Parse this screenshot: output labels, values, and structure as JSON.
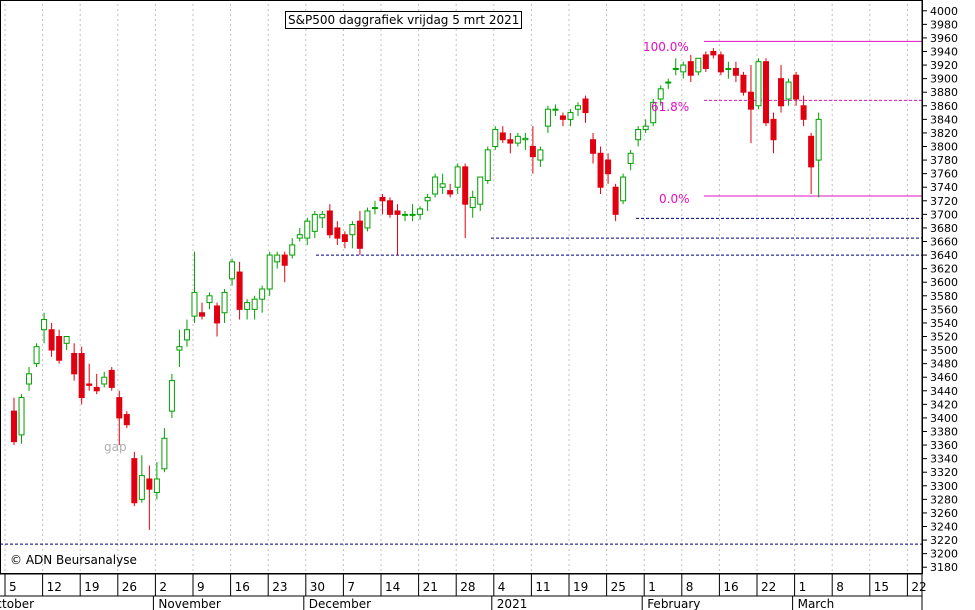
{
  "title": "S&P500 daggrafiek vrijdag 5 mrt 2021",
  "copyright": "© ADN Beursanalyse",
  "colors": {
    "up": "#00a000",
    "down": "#e00010",
    "fib": "#e010c0",
    "support": "#000080",
    "grid": "#c0c0c0",
    "gap": "#b0b0b0"
  },
  "chart_data": {
    "type": "candlestick",
    "title": "S&P500 daggrafiek vrijdag 5 mrt 2021",
    "ylim": [
      3170,
      4010
    ],
    "y_ticks": [
      3180,
      3200,
      3220,
      3240,
      3260,
      3280,
      3300,
      3320,
      3340,
      3360,
      3380,
      3400,
      3420,
      3440,
      3460,
      3480,
      3500,
      3520,
      3540,
      3560,
      3580,
      3600,
      3620,
      3640,
      3660,
      3680,
      3700,
      3720,
      3740,
      3760,
      3780,
      3800,
      3820,
      3840,
      3860,
      3880,
      3900,
      3920,
      3940,
      3960,
      3980,
      4000
    ],
    "x_tick_labels": [
      "5",
      "12",
      "19",
      "26",
      "2",
      "9",
      "16",
      "23",
      "30",
      "7",
      "14",
      "21",
      "28",
      "4",
      "11",
      "19",
      "25",
      "1",
      "8",
      "16",
      "22",
      "1",
      "8",
      "15",
      "22"
    ],
    "month_labels": [
      {
        "label": "October",
        "tick": 0
      },
      {
        "label": "November",
        "tick": 4
      },
      {
        "label": "December",
        "tick": 8
      },
      {
        "label": "2021",
        "tick": 13
      },
      {
        "label": "February",
        "tick": 17
      },
      {
        "label": "March",
        "tick": 21
      }
    ],
    "grid": true,
    "candles": [
      {
        "o": 3410,
        "h": 3430,
        "l": 3360,
        "c": 3365
      },
      {
        "o": 3375,
        "h": 3435,
        "l": 3362,
        "c": 3430
      },
      {
        "o": 3450,
        "h": 3475,
        "l": 3440,
        "c": 3465
      },
      {
        "o": 3480,
        "h": 3510,
        "l": 3475,
        "c": 3505
      },
      {
        "o": 3530,
        "h": 3555,
        "l": 3510,
        "c": 3545
      },
      {
        "o": 3530,
        "h": 3540,
        "l": 3490,
        "c": 3500
      },
      {
        "o": 3520,
        "h": 3530,
        "l": 3480,
        "c": 3485
      },
      {
        "o": 3510,
        "h": 3520,
        "l": 3500,
        "c": 3520
      },
      {
        "o": 3495,
        "h": 3510,
        "l": 3455,
        "c": 3465
      },
      {
        "o": 3495,
        "h": 3505,
        "l": 3420,
        "c": 3430
      },
      {
        "o": 3450,
        "h": 3480,
        "l": 3440,
        "c": 3448
      },
      {
        "o": 3445,
        "h": 3465,
        "l": 3435,
        "c": 3440
      },
      {
        "o": 3450,
        "h": 3468,
        "l": 3445,
        "c": 3460
      },
      {
        "o": 3470,
        "h": 3475,
        "l": 3440,
        "c": 3445
      },
      {
        "o": 3430,
        "h": 3440,
        "l": 3360,
        "c": 3400
      },
      {
        "o": 3405,
        "h": 3410,
        "l": 3385,
        "c": 3390
      },
      {
        "o": 3340,
        "h": 3350,
        "l": 3270,
        "c": 3275
      },
      {
        "o": 3280,
        "h": 3345,
        "l": 3275,
        "c": 3315
      },
      {
        "o": 3310,
        "h": 3330,
        "l": 3235,
        "c": 3295
      },
      {
        "o": 3290,
        "h": 3335,
        "l": 3280,
        "c": 3310
      },
      {
        "o": 3325,
        "h": 3385,
        "l": 3320,
        "c": 3370
      },
      {
        "o": 3410,
        "h": 3465,
        "l": 3400,
        "c": 3455
      },
      {
        "o": 3500,
        "h": 3530,
        "l": 3475,
        "c": 3505
      },
      {
        "o": 3515,
        "h": 3545,
        "l": 3505,
        "c": 3530
      },
      {
        "o": 3550,
        "h": 3645,
        "l": 3540,
        "c": 3585
      },
      {
        "o": 3555,
        "h": 3570,
        "l": 3545,
        "c": 3550
      },
      {
        "o": 3570,
        "h": 3585,
        "l": 3560,
        "c": 3580
      },
      {
        "o": 3565,
        "h": 3570,
        "l": 3520,
        "c": 3540
      },
      {
        "o": 3555,
        "h": 3590,
        "l": 3540,
        "c": 3585
      },
      {
        "o": 3605,
        "h": 3635,
        "l": 3595,
        "c": 3630
      },
      {
        "o": 3615,
        "h": 3630,
        "l": 3545,
        "c": 3560
      },
      {
        "o": 3560,
        "h": 3575,
        "l": 3545,
        "c": 3570
      },
      {
        "o": 3560,
        "h": 3580,
        "l": 3545,
        "c": 3575
      },
      {
        "o": 3575,
        "h": 3595,
        "l": 3555,
        "c": 3590
      },
      {
        "o": 3590,
        "h": 3645,
        "l": 3580,
        "c": 3640
      },
      {
        "o": 3630,
        "h": 3645,
        "l": 3620,
        "c": 3640
      },
      {
        "o": 3640,
        "h": 3645,
        "l": 3600,
        "c": 3625
      },
      {
        "o": 3640,
        "h": 3665,
        "l": 3635,
        "c": 3655
      },
      {
        "o": 3665,
        "h": 3680,
        "l": 3660,
        "c": 3670
      },
      {
        "o": 3665,
        "h": 3695,
        "l": 3655,
        "c": 3690
      },
      {
        "o": 3675,
        "h": 3705,
        "l": 3665,
        "c": 3700
      },
      {
        "o": 3695,
        "h": 3705,
        "l": 3680,
        "c": 3700
      },
      {
        "o": 3705,
        "h": 3715,
        "l": 3665,
        "c": 3670
      },
      {
        "o": 3680,
        "h": 3690,
        "l": 3655,
        "c": 3665
      },
      {
        "o": 3670,
        "h": 3675,
        "l": 3650,
        "c": 3660
      },
      {
        "o": 3670,
        "h": 3690,
        "l": 3650,
        "c": 3685
      },
      {
        "o": 3690,
        "h": 3705,
        "l": 3640,
        "c": 3650
      },
      {
        "o": 3680,
        "h": 3710,
        "l": 3675,
        "c": 3705
      },
      {
        "o": 3710,
        "h": 3720,
        "l": 3700,
        "c": 3710
      },
      {
        "o": 3725,
        "h": 3730,
        "l": 3700,
        "c": 3720
      },
      {
        "o": 3720,
        "h": 3725,
        "l": 3695,
        "c": 3700
      },
      {
        "o": 3705,
        "h": 3715,
        "l": 3640,
        "c": 3700
      },
      {
        "o": 3700,
        "h": 3705,
        "l": 3690,
        "c": 3700
      },
      {
        "o": 3700,
        "h": 3715,
        "l": 3690,
        "c": 3700
      },
      {
        "o": 3700,
        "h": 3712,
        "l": 3692,
        "c": 3708
      },
      {
        "o": 3720,
        "h": 3730,
        "l": 3705,
        "c": 3725
      },
      {
        "o": 3730,
        "h": 3760,
        "l": 3725,
        "c": 3755
      },
      {
        "o": 3740,
        "h": 3760,
        "l": 3730,
        "c": 3745
      },
      {
        "o": 3735,
        "h": 3745,
        "l": 3725,
        "c": 3730
      },
      {
        "o": 3740,
        "h": 3775,
        "l": 3730,
        "c": 3770
      },
      {
        "o": 3770,
        "h": 3775,
        "l": 3665,
        "c": 3715
      },
      {
        "o": 3710,
        "h": 3735,
        "l": 3695,
        "c": 3725
      },
      {
        "o": 3715,
        "h": 3755,
        "l": 3705,
        "c": 3755
      },
      {
        "o": 3750,
        "h": 3800,
        "l": 3745,
        "c": 3795
      },
      {
        "o": 3800,
        "h": 3830,
        "l": 3795,
        "c": 3825
      },
      {
        "o": 3820,
        "h": 3830,
        "l": 3805,
        "c": 3810
      },
      {
        "o": 3810,
        "h": 3820,
        "l": 3790,
        "c": 3805
      },
      {
        "o": 3805,
        "h": 3820,
        "l": 3800,
        "c": 3815
      },
      {
        "o": 3810,
        "h": 3820,
        "l": 3795,
        "c": 3812
      },
      {
        "o": 3800,
        "h": 3830,
        "l": 3760,
        "c": 3785
      },
      {
        "o": 3780,
        "h": 3800,
        "l": 3770,
        "c": 3795
      },
      {
        "o": 3830,
        "h": 3860,
        "l": 3820,
        "c": 3855
      },
      {
        "o": 3855,
        "h": 3862,
        "l": 3845,
        "c": 3855
      },
      {
        "o": 3845,
        "h": 3850,
        "l": 3830,
        "c": 3840
      },
      {
        "o": 3840,
        "h": 3855,
        "l": 3830,
        "c": 3850
      },
      {
        "o": 3855,
        "h": 3865,
        "l": 3845,
        "c": 3860
      },
      {
        "o": 3870,
        "h": 3875,
        "l": 3835,
        "c": 3850
      },
      {
        "o": 3810,
        "h": 3820,
        "l": 3775,
        "c": 3790
      },
      {
        "o": 3790,
        "h": 3800,
        "l": 3730,
        "c": 3740
      },
      {
        "o": 3780,
        "h": 3790,
        "l": 3745,
        "c": 3760
      },
      {
        "o": 3740,
        "h": 3745,
        "l": 3690,
        "c": 3700
      },
      {
        "o": 3720,
        "h": 3760,
        "l": 3715,
        "c": 3755
      },
      {
        "o": 3775,
        "h": 3795,
        "l": 3765,
        "c": 3790
      },
      {
        "o": 3810,
        "h": 3830,
        "l": 3800,
        "c": 3825
      },
      {
        "o": 3825,
        "h": 3840,
        "l": 3820,
        "c": 3830
      },
      {
        "o": 3835,
        "h": 3870,
        "l": 3830,
        "c": 3865
      },
      {
        "o": 3870,
        "h": 3890,
        "l": 3860,
        "c": 3885
      },
      {
        "o": 3895,
        "h": 3900,
        "l": 3885,
        "c": 3895
      },
      {
        "o": 3915,
        "h": 3930,
        "l": 3905,
        "c": 3915
      },
      {
        "o": 3910,
        "h": 3925,
        "l": 3900,
        "c": 3920
      },
      {
        "o": 3925,
        "h": 3935,
        "l": 3895,
        "c": 3905
      },
      {
        "o": 3910,
        "h": 3930,
        "l": 3905,
        "c": 3930
      },
      {
        "o": 3935,
        "h": 3940,
        "l": 3910,
        "c": 3915
      },
      {
        "o": 3940,
        "h": 3945,
        "l": 3930,
        "c": 3935
      },
      {
        "o": 3935,
        "h": 3940,
        "l": 3905,
        "c": 3910
      },
      {
        "o": 3915,
        "h": 3925,
        "l": 3900,
        "c": 3915
      },
      {
        "o": 3915,
        "h": 3925,
        "l": 3895,
        "c": 3905
      },
      {
        "o": 3905,
        "h": 3910,
        "l": 3875,
        "c": 3880
      },
      {
        "o": 3880,
        "h": 3920,
        "l": 3805,
        "c": 3855
      },
      {
        "o": 3860,
        "h": 3930,
        "l": 3855,
        "c": 3925
      },
      {
        "o": 3925,
        "h": 3930,
        "l": 3830,
        "c": 3835
      },
      {
        "o": 3840,
        "h": 3850,
        "l": 3790,
        "c": 3810
      },
      {
        "o": 3900,
        "h": 3920,
        "l": 3850,
        "c": 3860
      },
      {
        "o": 3870,
        "h": 3900,
        "l": 3860,
        "c": 3895
      },
      {
        "o": 3905,
        "h": 3910,
        "l": 3860,
        "c": 3870
      },
      {
        "o": 3860,
        "h": 3875,
        "l": 3830,
        "c": 3840
      },
      {
        "o": 3815,
        "h": 3820,
        "l": 3730,
        "c": 3770
      },
      {
        "o": 3780,
        "h": 3850,
        "l": 3725,
        "c": 3840
      }
    ],
    "fibonacci": [
      {
        "label": "100.0%",
        "level": 3955
      },
      {
        "label": "61.8%",
        "level": 3868
      },
      {
        "label": "0.0%",
        "level": 3727
      }
    ],
    "support_levels": [
      3694,
      3665,
      3640,
      3214
    ],
    "annotations": [
      "gap"
    ]
  }
}
